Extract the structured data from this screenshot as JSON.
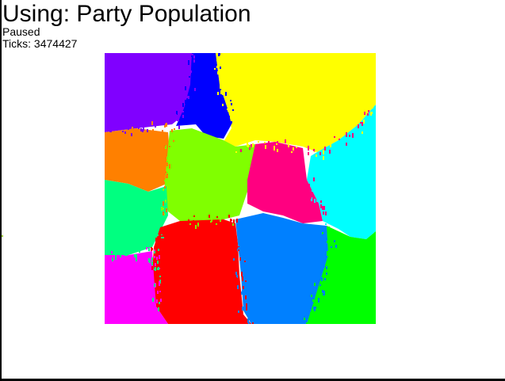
{
  "app": {
    "title": "Using: Party Population",
    "status": "Paused",
    "ticks_label": "Ticks: ",
    "ticks_value": "3474427"
  },
  "map": {
    "regions": [
      {
        "name": "purple",
        "color": "#8000ff"
      },
      {
        "name": "blue",
        "color": "#0000ff"
      },
      {
        "name": "yellow",
        "color": "#ffff00"
      },
      {
        "name": "orange",
        "color": "#ff8000"
      },
      {
        "name": "lime",
        "color": "#80ff00"
      },
      {
        "name": "pink",
        "color": "#ff0080"
      },
      {
        "name": "cyan",
        "color": "#00ffff"
      },
      {
        "name": "spring-green",
        "color": "#00ff80"
      },
      {
        "name": "red",
        "color": "#ff0000"
      },
      {
        "name": "azure",
        "color": "#0080ff"
      },
      {
        "name": "green",
        "color": "#00ff00"
      },
      {
        "name": "magenta",
        "color": "#ff00ff"
      }
    ]
  }
}
